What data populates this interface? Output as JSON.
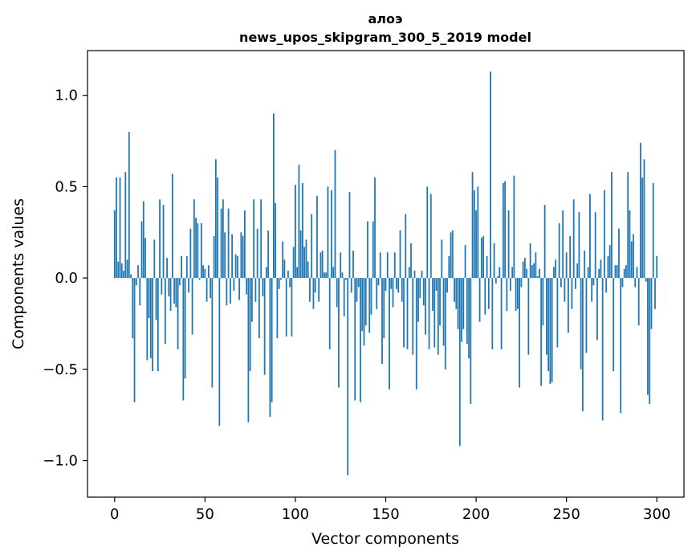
{
  "chart_data": {
    "type": "bar",
    "title": "алоэ",
    "subtitle": "news_upos_skipgram_300_5_2019 model",
    "xlabel": "Vector components",
    "ylabel": "Components values",
    "xlim": [
      -15,
      315
    ],
    "ylim": [
      -1.2,
      1.245
    ],
    "xticks": [
      0,
      50,
      100,
      150,
      200,
      250,
      300
    ],
    "yticks": [
      -1.0,
      -0.5,
      0.0,
      0.5,
      1.0
    ],
    "ytick_labels": [
      "−1.0",
      "−0.5",
      "0.0",
      "0.5",
      "1.0"
    ],
    "grid": false,
    "bar_color": "#1f77b4",
    "values": [
      0.37,
      0.55,
      0.09,
      0.55,
      0.08,
      0.04,
      0.58,
      0.1,
      0.8,
      0.02,
      -0.33,
      -0.68,
      -0.04,
      0.07,
      -0.15,
      0.31,
      0.42,
      0.22,
      -0.45,
      -0.22,
      -0.44,
      -0.51,
      0.21,
      -0.23,
      -0.51,
      0.43,
      -0.09,
      0.4,
      -0.36,
      0.11,
      -0.1,
      -0.18,
      0.57,
      -0.14,
      -0.16,
      -0.39,
      -0.04,
      0.12,
      -0.67,
      -0.55,
      0.12,
      -0.08,
      0.27,
      -0.31,
      0.43,
      0.33,
      0.3,
      -0.01,
      0.3,
      0.07,
      0.05,
      -0.13,
      0.07,
      -0.11,
      -0.6,
      0.23,
      0.65,
      0.55,
      -0.81,
      0.38,
      0.43,
      0.25,
      -0.15,
      0.38,
      -0.14,
      0.24,
      -0.07,
      0.13,
      0.12,
      -0.12,
      0.25,
      0.23,
      0.37,
      -0.09,
      -0.79,
      -0.51,
      -0.24,
      0.43,
      -0.13,
      0.27,
      -0.33,
      0.43,
      -0.1,
      -0.53,
      0.06,
      0.26,
      -0.76,
      -0.68,
      0.9,
      0.41,
      -0.33,
      -0.06,
      -0.01,
      0.2,
      0.1,
      -0.32,
      0.04,
      -0.05,
      -0.32,
      0.17,
      0.51,
      0.06,
      0.62,
      0.26,
      0.52,
      0.17,
      0.21,
      0.09,
      -0.13,
      0.35,
      -0.17,
      -0.08,
      0.45,
      -0.13,
      0.14,
      0.15,
      0.03,
      0.03,
      0.5,
      -0.39,
      0.48,
      0.06,
      0.7,
      -0.16,
      -0.6,
      0.14,
      0.03,
      -0.21,
      -0.01,
      -1.08,
      0.47,
      -0.08,
      0.15,
      -0.67,
      -0.13,
      -0.05,
      -0.68,
      -0.29,
      -0.37,
      -0.26,
      0.31,
      -0.3,
      -0.2,
      0.31,
      0.55,
      -0.17,
      -0.04,
      0.14,
      -0.47,
      -0.33,
      -0.07,
      0.14,
      -0.61,
      -0.06,
      -0.16,
      0.14,
      -0.06,
      -0.08,
      0.26,
      -0.13,
      -0.38,
      0.35,
      -0.39,
      0.06,
      0.19,
      -0.42,
      0.04,
      -0.61,
      -0.24,
      -0.11,
      0.04,
      -0.15,
      -0.31,
      0.5,
      -0.39,
      0.46,
      -0.18,
      -0.38,
      -0.07,
      -0.42,
      -0.26,
      0.21,
      -0.37,
      -0.5,
      -0.08,
      0.12,
      0.25,
      0.26,
      -0.13,
      -0.17,
      -0.28,
      -0.92,
      -0.35,
      -0.28,
      0.18,
      -0.36,
      -0.44,
      -0.69,
      0.58,
      0.48,
      0.37,
      0.5,
      -0.24,
      0.22,
      0.23,
      -0.2,
      0.12,
      -0.17,
      1.13,
      -0.39,
      0.19,
      -0.03,
      0.01,
      0.06,
      -0.39,
      0.52,
      0.53,
      -0.18,
      0.37,
      -0.07,
      0.06,
      0.56,
      -0.18,
      -0.17,
      -0.6,
      -0.05,
      0.09,
      0.11,
      0.05,
      -0.42,
      0.19,
      0.07,
      0.08,
      0.14,
      0.01,
      0.05,
      -0.59,
      -0.26,
      0.4,
      -0.42,
      -0.51,
      -0.58,
      -0.57,
      0.06,
      0.1,
      -0.38,
      0.3,
      -0.05,
      0.37,
      -0.13,
      0.14,
      -0.3,
      0.23,
      -0.17,
      0.43,
      -0.06,
      0.08,
      0.36,
      -0.5,
      -0.73,
      0.15,
      -0.41,
      0.06,
      0.46,
      -0.13,
      -0.04,
      0.36,
      -0.34,
      0.05,
      0.1,
      -0.78,
      0.48,
      -0.08,
      0.12,
      0.18,
      0.58,
      -0.51,
      0.07,
      0.07,
      0.27,
      -0.74,
      -0.05,
      0.05,
      0.07,
      0.58,
      0.37,
      0.2,
      0.24,
      -0.05,
      0.06,
      -0.26,
      0.74,
      0.55,
      0.65,
      -0.02,
      -0.64,
      -0.69,
      -0.28,
      0.52,
      -0.17,
      0.12
    ]
  }
}
